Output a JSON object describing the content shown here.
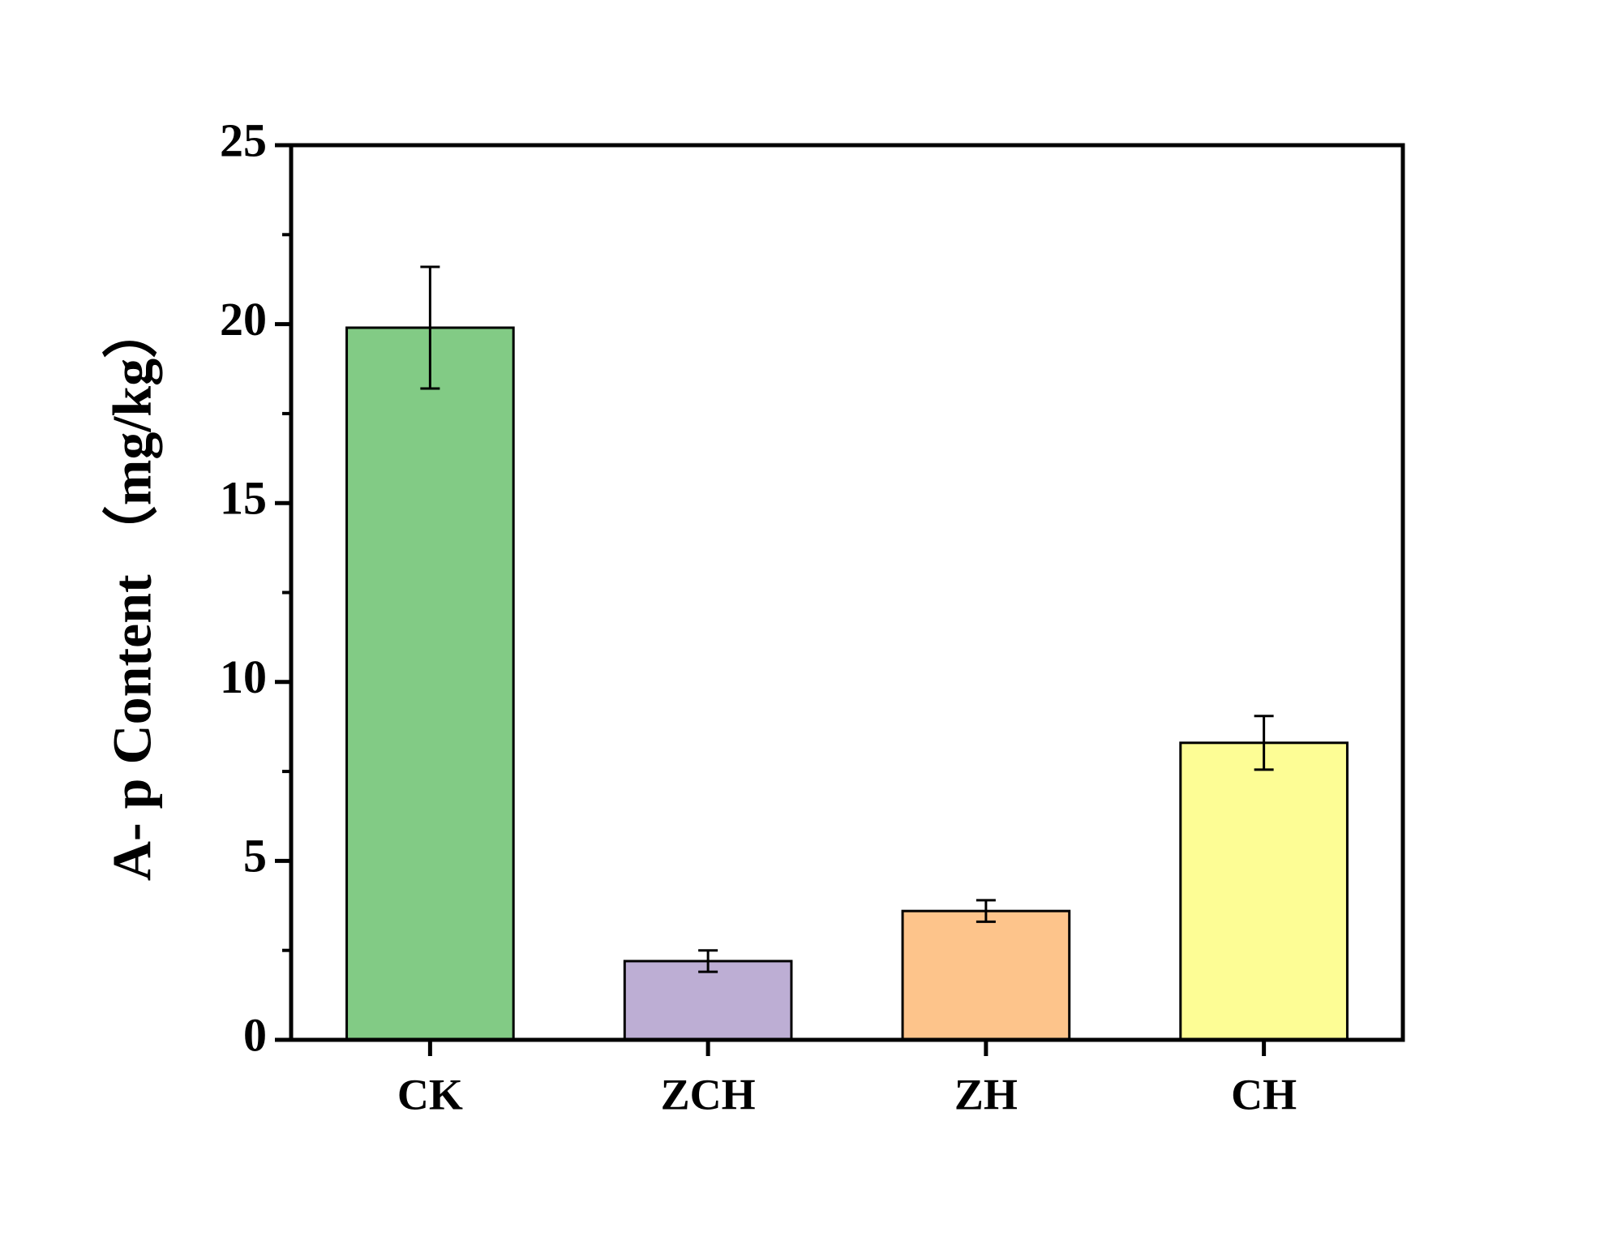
{
  "chart_data": {
    "type": "bar",
    "categories": [
      "CK",
      "ZCH",
      "ZH",
      "CH"
    ],
    "values": [
      19.9,
      2.2,
      3.6,
      8.3
    ],
    "errors": [
      1.7,
      0.3,
      0.3,
      0.75
    ],
    "colors": [
      "#82cb85",
      "#bdaed4",
      "#fdc48b",
      "#fdfd95"
    ],
    "y_label": "A- p Content （mg/kg）",
    "ylim": [
      0,
      25
    ],
    "yticks": [
      0,
      5,
      10,
      15,
      20,
      25
    ],
    "grid": false
  }
}
